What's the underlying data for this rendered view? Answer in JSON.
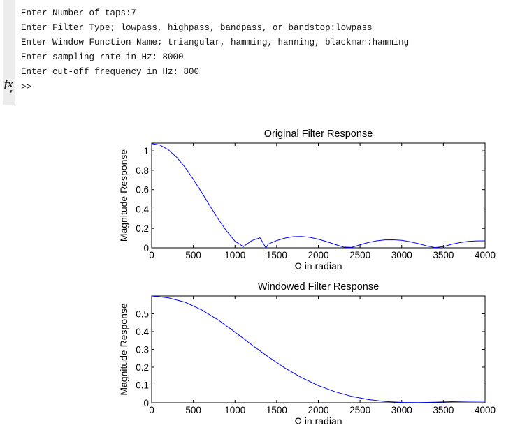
{
  "console": {
    "lines": [
      "Enter Number of taps:7",
      "Enter Filter Type; lowpass, highpass, bandpass, or bandstop:lowpass",
      "Enter Window Function Name; triangular, hamming, hanning, blackman:hamming",
      "Enter sampling rate in Hz: 8000",
      "Enter cut-off frequency in Hz: 800"
    ],
    "prompt": ">>",
    "fx_label": "fx"
  },
  "chart_data": [
    {
      "type": "line",
      "title": "Original Filter Response",
      "xlabel": "Ω in radian",
      "ylabel": "Magnitude Response",
      "xlim": [
        0,
        4000
      ],
      "ylim": [
        0,
        1.08
      ],
      "xticks": [
        0,
        500,
        1000,
        1500,
        2000,
        2500,
        3000,
        3500,
        4000
      ],
      "yticks": [
        0,
        0.2,
        0.4,
        0.6,
        0.8,
        1
      ],
      "ytick_labels": [
        "0",
        "0.2",
        "0.4",
        "0.6",
        "0.8",
        "1"
      ],
      "series": [
        {
          "name": "magnitude",
          "color": "#0000ff",
          "x": [
            0,
            100,
            200,
            300,
            400,
            500,
            600,
            700,
            800,
            900,
            1000,
            1100,
            1200,
            1300,
            1371,
            1400,
            1500,
            1600,
            1700,
            1800,
            1900,
            2000,
            2100,
            2200,
            2300,
            2400,
            2500,
            2600,
            2700,
            2800,
            2900,
            3000,
            3100,
            3200,
            3300,
            3400,
            3500,
            3600,
            3700,
            3800,
            3900,
            4000
          ],
          "y": [
            1.075,
            1.06,
            1.012,
            0.934,
            0.831,
            0.707,
            0.571,
            0.431,
            0.295,
            0.172,
            0.068,
            0.012,
            0.074,
            0.104,
            0.0,
            0.038,
            0.075,
            0.101,
            0.115,
            0.117,
            0.108,
            0.089,
            0.064,
            0.035,
            0.008,
            0.004,
            0.032,
            0.055,
            0.072,
            0.082,
            0.083,
            0.077,
            0.063,
            0.043,
            0.02,
            0.003,
            0.012,
            0.037,
            0.054,
            0.066,
            0.071,
            0.072
          ]
        }
      ]
    },
    {
      "type": "line",
      "title": "Windowed Filter Response",
      "xlabel": "Ω  in radian",
      "ylabel": "Magnitude Response",
      "xlim": [
        0,
        4000
      ],
      "ylim": [
        0,
        0.6
      ],
      "xticks": [
        0,
        500,
        1000,
        1500,
        2000,
        2500,
        3000,
        3500,
        4000
      ],
      "yticks": [
        0,
        0.1,
        0.2,
        0.3,
        0.4,
        0.5
      ],
      "ytick_labels": [
        "0",
        "0.1",
        "0.2",
        "0.3",
        "0.4",
        "0.5"
      ],
      "series": [
        {
          "name": "magnitude",
          "color": "#0000ff",
          "x": [
            0,
            200,
            400,
            600,
            800,
            1000,
            1200,
            1400,
            1600,
            1800,
            2000,
            2200,
            2400,
            2600,
            2800,
            3000,
            3200,
            3400,
            3600,
            3800,
            4000
          ],
          "y": [
            0.6,
            0.59,
            0.565,
            0.522,
            0.465,
            0.397,
            0.326,
            0.258,
            0.195,
            0.141,
            0.097,
            0.062,
            0.036,
            0.018,
            0.007,
            0.002,
            0.001,
            0.003,
            0.006,
            0.008,
            0.009
          ]
        }
      ]
    }
  ]
}
